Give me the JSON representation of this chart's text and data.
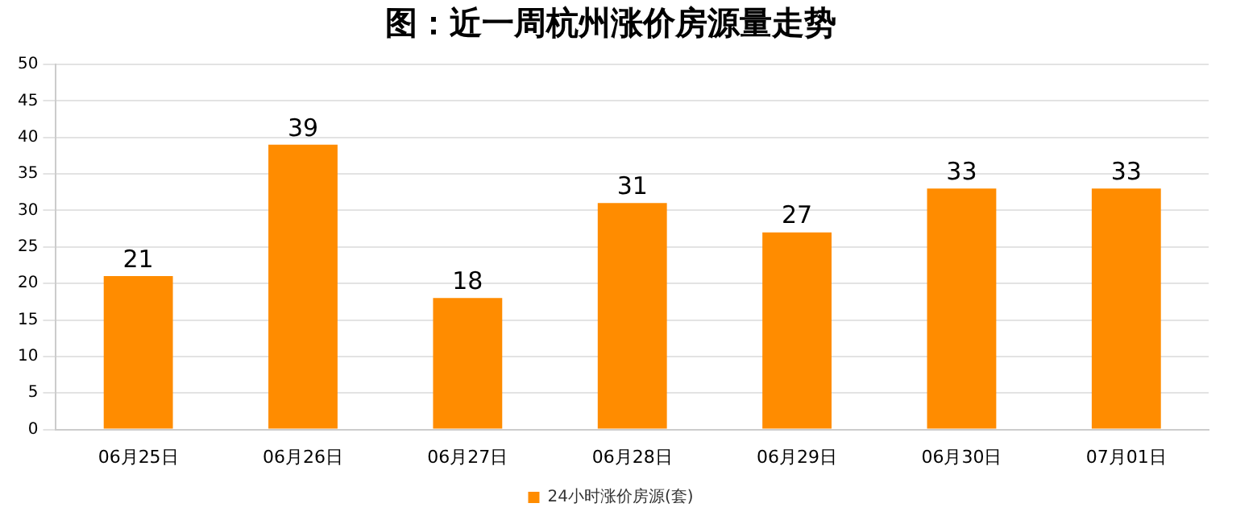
{
  "chart_data": {
    "type": "bar",
    "title": "图：近一周杭州涨价房源量走势",
    "categories": [
      "06月25日",
      "06月26日",
      "06月27日",
      "06月28日",
      "06月29日",
      "06月30日",
      "07月01日"
    ],
    "series": [
      {
        "name": "24小时涨价房源(套)",
        "color": "#ff8c00",
        "values": [
          21,
          39,
          18,
          31,
          27,
          33,
          33
        ]
      }
    ],
    "ylim": [
      0,
      50
    ],
    "yticks": [
      0,
      5,
      10,
      15,
      20,
      25,
      30,
      35,
      40,
      45,
      50
    ],
    "grid": "y",
    "legend": "bottom",
    "data_labels": true
  }
}
